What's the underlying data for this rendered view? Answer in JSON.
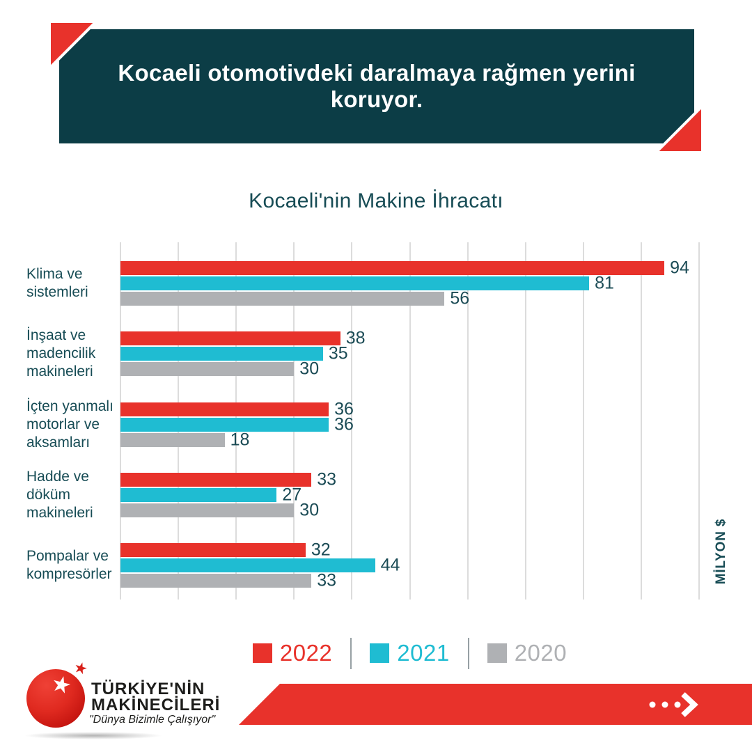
{
  "banner": {
    "headline": "Kocaeli otomotivdeki daralmaya rağmen yerini koruyor."
  },
  "chart_data": {
    "type": "bar",
    "orientation": "horizontal",
    "title": "Kocaeli'nin Makine İhracatı",
    "unit_label": "MİLYON $",
    "xlim": [
      0,
      100
    ],
    "gridline_step": 10,
    "grid": true,
    "legend_position": "bottom-center",
    "categories": [
      "Klima ve\nsistemleri",
      "İnşaat ve\nmadencilik\nmakineleri",
      "İçten yanmalı\nmotorlar ve\naksamları",
      "Hadde ve döküm\nmakineleri",
      "Pompalar ve\nkompresörler"
    ],
    "series": [
      {
        "name": "2022",
        "color": "#e8322b",
        "values": [
          94,
          38,
          36,
          33,
          32
        ]
      },
      {
        "name": "2021",
        "color": "#1fbcd2",
        "values": [
          81,
          35,
          36,
          27,
          44
        ]
      },
      {
        "name": "2020",
        "color": "#afb1b4",
        "values": [
          56,
          30,
          18,
          30,
          33
        ]
      }
    ]
  },
  "legend": {
    "items": [
      {
        "label": "2022",
        "color": "#e8322b"
      },
      {
        "label": "2021",
        "color": "#1fbcd2"
      },
      {
        "label": "2020",
        "color": "#afb1b4"
      }
    ]
  },
  "footer": {
    "logo_line1": "TÜRKİYE'NİN",
    "logo_line2": "MAKİNECİLERİ",
    "logo_slogan": "\"Dünya Bizimle Çalışıyor\"",
    "star_icon": "★",
    "arrow_icon": "dots-chevron-right"
  },
  "colors": {
    "banner_bg": "#0c3d46",
    "accent_red": "#e8322b",
    "teal": "#1fbcd2",
    "gray": "#afb1b4",
    "text_dark_teal": "#174c55",
    "gridline": "#dcdcdc",
    "legend_divider": "#97a0a4"
  }
}
